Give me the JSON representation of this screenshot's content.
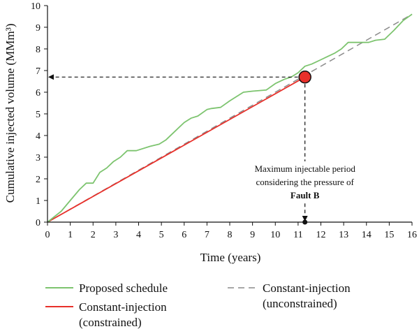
{
  "chart_data": {
    "type": "line",
    "title": "",
    "xlabel": "Time (years)",
    "ylabel": "Cumulative injected volume (MMm³)",
    "xlim": [
      0,
      16
    ],
    "ylim": [
      0,
      10
    ],
    "xticks": [
      "0",
      "1",
      "2",
      "3",
      "4",
      "5",
      "6",
      "7",
      "8",
      "9",
      "10",
      "11",
      "12",
      "13",
      "14",
      "15",
      "16"
    ],
    "yticks": [
      "0",
      "1",
      "2",
      "3",
      "4",
      "5",
      "6",
      "7",
      "8",
      "9",
      "10"
    ],
    "grid": false,
    "legend_position": "bottom",
    "series": [
      {
        "name": "Proposed schedule",
        "style": "solid",
        "color": "#7dc46f",
        "x": [
          0,
          0.6,
          1.0,
          1.4,
          1.7,
          2.0,
          2.3,
          2.6,
          2.9,
          3.2,
          3.5,
          3.9,
          4.5,
          4.9,
          5.2,
          5.6,
          6.0,
          6.3,
          6.6,
          7.0,
          7.2,
          7.6,
          8.0,
          8.6,
          9.0,
          9.6,
          10.0,
          10.4,
          10.7,
          11.0,
          11.3,
          11.6,
          11.8,
          12.0,
          12.3,
          12.6,
          12.9,
          13.2,
          13.5,
          13.8,
          14.1,
          14.4,
          14.8,
          15.2,
          15.6,
          16.0
        ],
        "y": [
          0.0,
          0.5,
          1.0,
          1.5,
          1.8,
          1.8,
          2.3,
          2.5,
          2.8,
          3.0,
          3.3,
          3.3,
          3.5,
          3.6,
          3.8,
          4.2,
          4.6,
          4.8,
          4.9,
          5.2,
          5.25,
          5.3,
          5.6,
          6.0,
          6.05,
          6.1,
          6.4,
          6.6,
          6.7,
          6.9,
          7.2,
          7.3,
          7.4,
          7.5,
          7.65,
          7.8,
          8.0,
          8.3,
          8.3,
          8.3,
          8.3,
          8.4,
          8.45,
          8.85,
          9.3,
          9.6
        ]
      },
      {
        "name": "Constant-injection (constrained)",
        "style": "solid",
        "color": "#e8302a",
        "x": [
          0,
          11.3
        ],
        "y": [
          0,
          6.7
        ]
      },
      {
        "name": "Constant-injection (unconstrained)",
        "style": "dashed",
        "color": "#8c8c8c",
        "x": [
          0,
          16
        ],
        "y": [
          0,
          9.6
        ]
      }
    ],
    "marker": {
      "x": 11.3,
      "y": 6.7,
      "color": "#e8302a"
    },
    "annotation": {
      "lines": [
        "Maximum injectable period",
        "considering the pressure of"
      ],
      "bold": "Fault B"
    }
  },
  "legend": {
    "proposed_label": "Proposed schedule",
    "constrained_label_1": "Constant-injection",
    "constrained_label_2": "(constrained)",
    "unconstrained_label_1": "Constant-injection",
    "unconstrained_label_2": "(unconstrained)"
  }
}
